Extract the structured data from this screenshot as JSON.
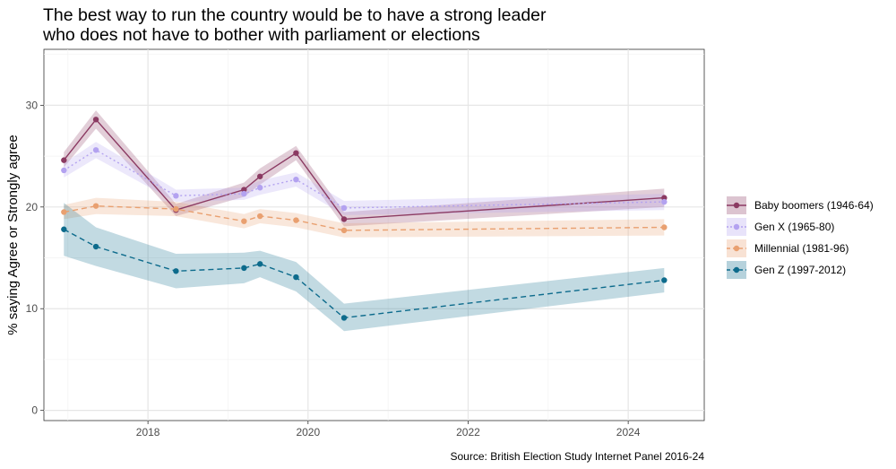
{
  "chart_data": {
    "type": "line",
    "title": "The best way to run the country would be to have a strong leader who does not have to bother with parliament or elections",
    "title_lines": [
      "The best way to run the country would be to have a strong leader",
      "who does not have to bother with parliament or elections"
    ],
    "xlabel": "",
    "ylabel": "% saying Agree or Strongly agree",
    "caption": "Source: British Election Study Internet Panel 2016-24",
    "xlim": [
      2016.7,
      2024.95
    ],
    "ylim": [
      -1.0,
      35.5
    ],
    "x_ticks": [
      2018,
      2020,
      2022,
      2024
    ],
    "y_ticks": [
      0,
      10,
      20,
      30
    ],
    "x_tick_labels": [
      "2018",
      "2020",
      "2022",
      "2024"
    ],
    "y_tick_labels": [
      "0",
      "10",
      "20",
      "30"
    ],
    "grid": true,
    "legend_position": "right",
    "series": [
      {
        "name": "Baby boomers (1946-64)",
        "color": "#8b3a62",
        "dash": "solid",
        "x": [
          2016.95,
          2017.35,
          2018.35,
          2019.2,
          2019.4,
          2019.85,
          2020.45,
          2024.45
        ],
        "y": [
          24.6,
          28.6,
          19.7,
          21.7,
          23.0,
          25.3,
          18.8,
          20.9
        ],
        "lower": [
          23.9,
          27.7,
          19.1,
          21.0,
          22.2,
          24.6,
          18.1,
          20.0
        ],
        "upper": [
          25.4,
          29.5,
          20.3,
          22.4,
          23.8,
          26.0,
          19.5,
          21.8
        ]
      },
      {
        "name": "Gen X (1965-80)",
        "color": "#b3a2f0",
        "dash": "dotted",
        "x": [
          2016.95,
          2017.35,
          2018.35,
          2019.2,
          2019.4,
          2019.85,
          2020.45,
          2024.45
        ],
        "y": [
          23.6,
          25.6,
          21.1,
          21.3,
          21.9,
          22.7,
          19.9,
          20.5
        ],
        "lower": [
          22.9,
          24.8,
          20.5,
          20.7,
          21.2,
          22.0,
          19.2,
          19.7
        ],
        "upper": [
          24.3,
          26.4,
          21.7,
          21.9,
          22.6,
          23.4,
          20.6,
          21.3
        ]
      },
      {
        "name": "Millennial (1981-96)",
        "color": "#e9a070",
        "dash": "dashed",
        "x": [
          2016.95,
          2017.35,
          2018.35,
          2019.2,
          2019.4,
          2019.85,
          2020.45,
          2024.45
        ],
        "y": [
          19.5,
          20.1,
          19.8,
          18.6,
          19.1,
          18.7,
          17.7,
          18.0
        ],
        "lower": [
          18.8,
          19.3,
          19.1,
          17.9,
          18.4,
          18.0,
          17.0,
          17.2
        ],
        "upper": [
          20.2,
          20.9,
          20.5,
          19.3,
          19.8,
          19.4,
          18.4,
          18.8
        ]
      },
      {
        "name": "Gen Z (1997-2012)",
        "color": "#0d6b8c",
        "dash": "dashed",
        "x": [
          2016.95,
          2017.35,
          2018.35,
          2019.2,
          2019.4,
          2019.85,
          2020.45,
          2024.45
        ],
        "y": [
          17.8,
          16.1,
          13.7,
          14.0,
          14.4,
          13.1,
          9.1,
          12.8
        ],
        "lower": [
          15.2,
          14.2,
          12.0,
          12.5,
          13.1,
          11.7,
          7.8,
          11.6
        ],
        "upper": [
          20.4,
          18.0,
          15.4,
          15.5,
          15.7,
          14.6,
          10.5,
          14.0
        ]
      }
    ]
  }
}
